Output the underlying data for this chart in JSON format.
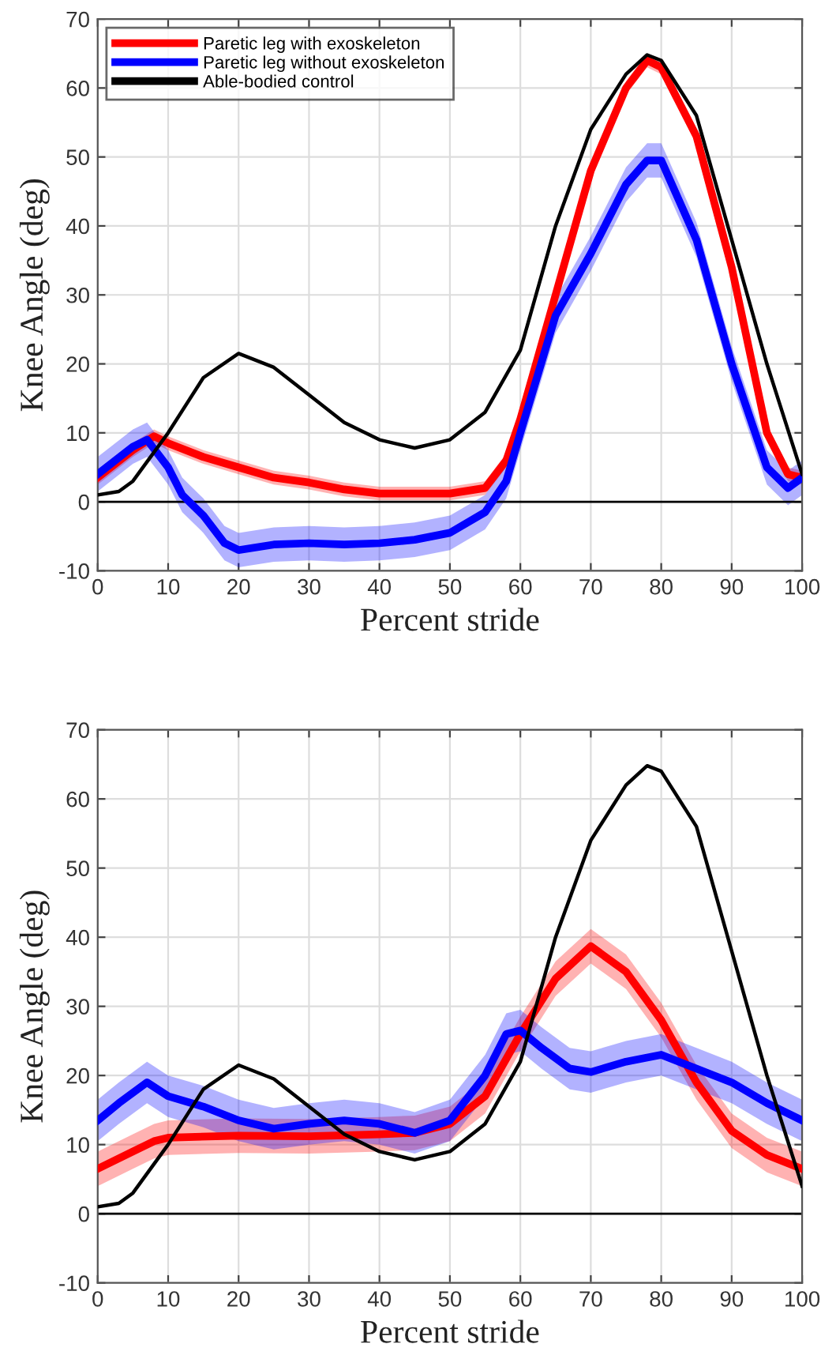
{
  "chart_data": [
    {
      "type": "line",
      "xlabel": "Percent stride",
      "ylabel": "Knee Angle (deg)",
      "xlim": [
        0,
        100
      ],
      "ylim": [
        -10,
        70
      ],
      "xticks": [
        0,
        10,
        20,
        30,
        40,
        50,
        60,
        70,
        80,
        90,
        100
      ],
      "yticks": [
        -10,
        0,
        10,
        20,
        30,
        40,
        50,
        60,
        70
      ],
      "grid": true,
      "legend": "top left",
      "ref_lines": [
        {
          "axis": "y",
          "value": 0,
          "color": "#000000"
        }
      ],
      "series": [
        {
          "name": "Paretic leg with exoskeleton",
          "color": "#ff0000",
          "x": [
            0,
            5,
            8,
            10,
            15,
            20,
            25,
            30,
            35,
            40,
            45,
            50,
            55,
            58,
            60,
            65,
            70,
            75,
            78,
            80,
            85,
            90,
            95,
            98,
            100
          ],
          "values": [
            3.5,
            7.5,
            9.5,
            8.5,
            6.5,
            5,
            3.5,
            2.8,
            1.8,
            1.2,
            1.2,
            1.2,
            2,
            6,
            12,
            30,
            48,
            60,
            64,
            63,
            53,
            34,
            10,
            4,
            3.5
          ],
          "lower": [
            2.5,
            6.5,
            8.5,
            7.5,
            5.5,
            4,
            2.5,
            1.8,
            0.8,
            0.2,
            0.2,
            0.2,
            1,
            5,
            11,
            29,
            47,
            59,
            63,
            62,
            52,
            33,
            9,
            3,
            2.5
          ],
          "upper": [
            4.5,
            8.5,
            10.5,
            9.5,
            7.5,
            6,
            4.5,
            3.8,
            2.8,
            2.2,
            2.2,
            2.2,
            3,
            7,
            13,
            31,
            49,
            61,
            65,
            64,
            54,
            35,
            11,
            5,
            4.5
          ]
        },
        {
          "name": "Paretic leg without exoskeleton",
          "color": "#0000ff",
          "x": [
            0,
            5,
            7,
            10,
            12,
            15,
            18,
            20,
            25,
            30,
            35,
            40,
            45,
            50,
            55,
            58,
            60,
            65,
            70,
            75,
            78,
            80,
            85,
            90,
            95,
            98,
            100
          ],
          "values": [
            4,
            8,
            9,
            5,
            1,
            -2,
            -6,
            -7,
            -6.2,
            -6,
            -6.2,
            -6,
            -5.5,
            -4.5,
            -1.5,
            3,
            10,
            27,
            36,
            46,
            49.5,
            49.5,
            38,
            20,
            5,
            2,
            3.5
          ],
          "lower": [
            1.5,
            5.5,
            6.5,
            2.5,
            -1.5,
            -4.5,
            -8.5,
            -9.5,
            -8.7,
            -8.5,
            -8.7,
            -8.5,
            -8,
            -7,
            -4,
            0.5,
            7.5,
            24.5,
            33.5,
            43.5,
            47,
            47,
            35.5,
            17.5,
            2.5,
            -0.5,
            1
          ],
          "upper": [
            6.5,
            10.5,
            11.5,
            7.5,
            3.5,
            0.5,
            -3.5,
            -4.5,
            -3.7,
            -3.5,
            -3.7,
            -3.5,
            -3,
            -2,
            1,
            5.5,
            12.5,
            29.5,
            38.5,
            48.5,
            52,
            52,
            40.5,
            22.5,
            7.5,
            4.5,
            6
          ]
        },
        {
          "name": "Able-bodied control",
          "color": "#000000",
          "x": [
            0,
            3,
            5,
            10,
            15,
            20,
            25,
            30,
            35,
            40,
            45,
            50,
            55,
            60,
            65,
            70,
            75,
            78,
            80,
            85,
            90,
            95,
            100
          ],
          "values": [
            1,
            1.5,
            3,
            10,
            18,
            21.5,
            19.5,
            15.5,
            11.5,
            9,
            7.8,
            9,
            13,
            22,
            40,
            54,
            62,
            64.8,
            64,
            56,
            38,
            20,
            4
          ]
        }
      ]
    },
    {
      "type": "line",
      "xlabel": "Percent stride",
      "ylabel": "Knee Angle (deg)",
      "xlim": [
        0,
        100
      ],
      "ylim": [
        -10,
        70
      ],
      "xticks": [
        0,
        10,
        20,
        30,
        40,
        50,
        60,
        70,
        80,
        90,
        100
      ],
      "yticks": [
        -10,
        0,
        10,
        20,
        30,
        40,
        50,
        60,
        70
      ],
      "grid": true,
      "ref_lines": [
        {
          "axis": "y",
          "value": 0,
          "color": "#000000"
        }
      ],
      "series": [
        {
          "color": "#ff0000",
          "x": [
            0,
            5,
            8,
            10,
            20,
            30,
            40,
            45,
            50,
            55,
            60,
            65,
            70,
            75,
            80,
            85,
            90,
            95,
            100
          ],
          "values": [
            6.5,
            9,
            10.5,
            11,
            11.3,
            11.2,
            11.5,
            11.7,
            13,
            17,
            26,
            34,
            38.7,
            35,
            28,
            19,
            12,
            8.5,
            6.5
          ],
          "lower": [
            4,
            6.5,
            8,
            8.5,
            8.8,
            8.7,
            9,
            9.2,
            10.5,
            14.5,
            23.5,
            31.5,
            36.2,
            32.5,
            25.5,
            16.5,
            9.5,
            6,
            4
          ],
          "upper": [
            9,
            11.5,
            13,
            13.5,
            13.8,
            13.7,
            14,
            14.2,
            15.5,
            19.5,
            28.5,
            36.5,
            41.2,
            37.5,
            30.5,
            21.5,
            14.5,
            11,
            9
          ]
        },
        {
          "color": "#0000ff",
          "x": [
            0,
            3,
            7,
            10,
            15,
            20,
            25,
            30,
            35,
            40,
            45,
            50,
            55,
            58,
            60,
            63,
            67,
            70,
            75,
            80,
            85,
            90,
            95,
            100
          ],
          "values": [
            13.5,
            16,
            19,
            17,
            15.5,
            13.5,
            12.3,
            13,
            13.5,
            13,
            11.7,
            13.5,
            20,
            26,
            26.5,
            24,
            21,
            20.5,
            22,
            23,
            21,
            19,
            16,
            13.5
          ],
          "lower": [
            10.5,
            13,
            16,
            14,
            12.5,
            10.5,
            9.3,
            10,
            10.5,
            10,
            8.7,
            10.5,
            17,
            23,
            23.5,
            21,
            18,
            17.5,
            19,
            20,
            18,
            16,
            13,
            10.5
          ],
          "upper": [
            16.5,
            19,
            22,
            20,
            18.5,
            16.5,
            15.3,
            16,
            16.5,
            16,
            14.7,
            16.5,
            23,
            29,
            29.5,
            27,
            24,
            23.5,
            25,
            26,
            24,
            22,
            19,
            16.5
          ]
        },
        {
          "color": "#000000",
          "x": [
            0,
            3,
            5,
            10,
            15,
            20,
            25,
            30,
            35,
            40,
            45,
            50,
            55,
            60,
            65,
            70,
            75,
            78,
            80,
            85,
            90,
            95,
            100
          ],
          "values": [
            1,
            1.5,
            3,
            10,
            18,
            21.5,
            19.5,
            15.5,
            11.5,
            9,
            7.8,
            9,
            13,
            22,
            40,
            54,
            62,
            64.8,
            64,
            56,
            38,
            20,
            4
          ]
        }
      ]
    }
  ]
}
